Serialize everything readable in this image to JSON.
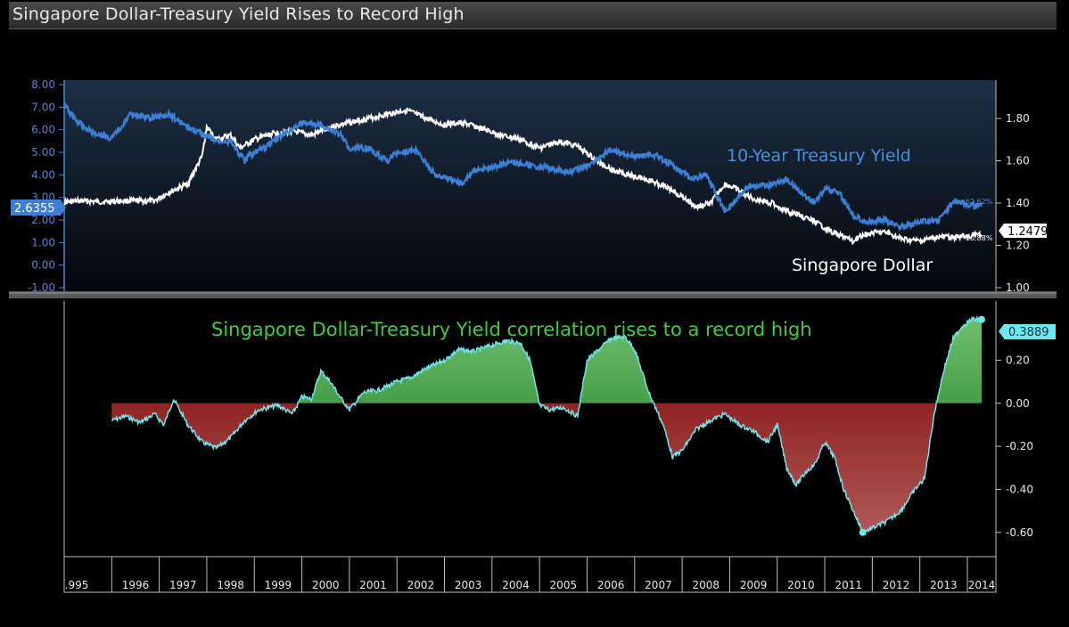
{
  "window_title": "Singapore Dollar-Treasury Yield Rises to Record High",
  "colors": {
    "background": "#000000",
    "treasury": "#3d7fd4",
    "sgd": "#ffffff",
    "correlation_line": "#6ee8ee",
    "positive_fill": "#1f8a1f",
    "negative_fill": "#8c0f0f",
    "annotation_green": "#3bd13b"
  },
  "chart_data": [
    {
      "type": "line",
      "panel": "top",
      "left_axis": {
        "ylim": [
          -1.0,
          8.0
        ],
        "ticks": [
          "8.00",
          "7.00",
          "6.00",
          "5.00",
          "4.00",
          "3.00",
          "2.00",
          "1.00",
          "0.00",
          "-1.00"
        ]
      },
      "right_axis": {
        "ylim": [
          1.0,
          1.96
        ],
        "ticks": [
          "1.80",
          "1.60",
          "1.40",
          "1.20",
          "1.00"
        ]
      },
      "series": [
        {
          "name": "10-Year Treasury Yield",
          "axis": "left",
          "color": "#3d7fd4",
          "x": [
            1995.0,
            1995.3,
            1995.6,
            1996.0,
            1996.4,
            1996.8,
            1997.2,
            1997.6,
            1997.9,
            1998.2,
            1998.5,
            1998.8,
            1998.9,
            1999.2,
            1999.6,
            2000.0,
            2000.4,
            2000.8,
            2001.0,
            2001.4,
            2001.8,
            2002.0,
            2002.4,
            2002.8,
            2003.0,
            2003.4,
            2003.6,
            2004.0,
            2004.4,
            2004.8,
            2005.2,
            2005.6,
            2006.0,
            2006.5,
            2007.0,
            2007.4,
            2007.9,
            2008.2,
            2008.5,
            2008.9,
            2009.0,
            2009.4,
            2009.8,
            2010.2,
            2010.6,
            2010.8,
            2011.0,
            2011.3,
            2011.6,
            2011.9,
            2012.2,
            2012.6,
            2013.0,
            2013.4,
            2013.7,
            2014.0,
            2014.3
          ],
          "values": [
            7.1,
            6.3,
            5.9,
            5.6,
            6.7,
            6.5,
            6.7,
            6.1,
            5.8,
            5.5,
            5.5,
            4.6,
            4.9,
            5.2,
            5.8,
            6.3,
            6.2,
            5.8,
            5.2,
            5.2,
            4.6,
            5.0,
            5.1,
            4.0,
            3.9,
            3.6,
            4.2,
            4.3,
            4.6,
            4.4,
            4.3,
            4.1,
            4.4,
            5.1,
            4.8,
            4.9,
            4.3,
            3.8,
            4.0,
            2.4,
            2.6,
            3.5,
            3.5,
            3.8,
            3.0,
            2.8,
            3.4,
            3.2,
            2.2,
            1.9,
            2.0,
            1.7,
            1.9,
            2.0,
            2.8,
            2.7,
            2.6
          ]
        },
        {
          "name": "Singapore Dollar",
          "axis": "right",
          "color": "#ffffff",
          "x": [
            1995.0,
            1995.4,
            1995.8,
            1996.2,
            1996.6,
            1996.9,
            1997.2,
            1997.6,
            1997.9,
            1998.0,
            1998.2,
            1998.5,
            1998.7,
            1999.0,
            1999.4,
            1999.8,
            2000.2,
            2000.6,
            2001.0,
            2001.4,
            2001.8,
            2002.2,
            2002.6,
            2003.0,
            2003.4,
            2003.8,
            2004.2,
            2004.6,
            2005.0,
            2005.4,
            2005.8,
            2006.2,
            2006.6,
            2007.0,
            2007.4,
            2007.8,
            2008.0,
            2008.3,
            2008.6,
            2008.9,
            2009.1,
            2009.5,
            2009.9,
            2010.2,
            2010.5,
            2010.8,
            2011.1,
            2011.4,
            2011.6,
            2011.8,
            2012.0,
            2012.3,
            2012.6,
            2013.0,
            2013.4,
            2013.8,
            2014.2,
            2014.3
          ],
          "values": [
            1.405,
            1.41,
            1.405,
            1.41,
            1.41,
            1.41,
            1.45,
            1.49,
            1.62,
            1.76,
            1.7,
            1.72,
            1.66,
            1.7,
            1.73,
            1.74,
            1.72,
            1.76,
            1.78,
            1.8,
            1.82,
            1.84,
            1.8,
            1.77,
            1.78,
            1.75,
            1.72,
            1.7,
            1.66,
            1.69,
            1.67,
            1.6,
            1.55,
            1.53,
            1.5,
            1.46,
            1.43,
            1.38,
            1.4,
            1.49,
            1.47,
            1.42,
            1.4,
            1.36,
            1.34,
            1.31,
            1.27,
            1.24,
            1.22,
            1.25,
            1.26,
            1.26,
            1.23,
            1.22,
            1.24,
            1.24,
            1.25,
            1.25
          ]
        }
      ],
      "labels": {
        "treasury": "10-Year Treasury Yield",
        "sgd": "Singapore Dollar",
        "treasury_current": "2.6355",
        "treasury_change": "-62.62%",
        "sgd_current": "1.2479",
        "sgd_change": "-10.88%"
      }
    },
    {
      "type": "area",
      "panel": "bottom",
      "title": "Singapore Dollar-Treasury Yield correlation rises to a record high",
      "ylim": [
        -0.7,
        0.45
      ],
      "y_ticks": [
        "0.20",
        "0.00",
        "-0.20",
        "-0.40",
        "-0.60"
      ],
      "current_value": "0.3889",
      "x": [
        1996.0,
        1996.3,
        1996.6,
        1996.9,
        1997.1,
        1997.3,
        1997.6,
        1997.9,
        1998.2,
        1998.5,
        1998.8,
        1999.1,
        1999.5,
        1999.8,
        2000.0,
        2000.2,
        2000.4,
        2000.6,
        2000.8,
        2001.0,
        2001.3,
        2001.6,
        2002.0,
        2002.3,
        2002.6,
        2003.0,
        2003.3,
        2003.6,
        2004.0,
        2004.3,
        2004.6,
        2004.8,
        2005.0,
        2005.2,
        2005.5,
        2005.8,
        2006.0,
        2006.2,
        2006.5,
        2006.8,
        2007.0,
        2007.3,
        2007.6,
        2007.8,
        2008.0,
        2008.3,
        2008.6,
        2008.9,
        2009.2,
        2009.5,
        2009.8,
        2010.0,
        2010.2,
        2010.4,
        2010.6,
        2010.8,
        2011.0,
        2011.2,
        2011.4,
        2011.6,
        2011.8,
        2012.0,
        2012.3,
        2012.6,
        2012.9,
        2013.1,
        2013.3,
        2013.5,
        2013.7,
        2013.9,
        2014.1,
        2014.3
      ],
      "values": [
        -0.08,
        -0.06,
        -0.09,
        -0.05,
        -0.1,
        0.02,
        -0.1,
        -0.18,
        -0.21,
        -0.16,
        -0.08,
        -0.03,
        -0.01,
        -0.05,
        0.03,
        0.02,
        0.15,
        0.1,
        0.03,
        -0.03,
        0.05,
        0.06,
        0.1,
        0.12,
        0.16,
        0.2,
        0.25,
        0.24,
        0.27,
        0.29,
        0.28,
        0.2,
        -0.01,
        -0.03,
        -0.02,
        -0.06,
        0.2,
        0.24,
        0.3,
        0.31,
        0.25,
        0.05,
        -0.1,
        -0.25,
        -0.22,
        -0.12,
        -0.08,
        -0.05,
        -0.1,
        -0.13,
        -0.18,
        -0.1,
        -0.3,
        -0.38,
        -0.32,
        -0.28,
        -0.18,
        -0.25,
        -0.4,
        -0.5,
        -0.6,
        -0.58,
        -0.55,
        -0.5,
        -0.4,
        -0.35,
        -0.05,
        0.15,
        0.3,
        0.36,
        0.39,
        0.389
      ]
    }
  ],
  "x_axis": {
    "range": [
      1995.0,
      2014.6
    ],
    "labels": [
      ".995",
      "1996",
      "1997",
      "1998",
      "1999",
      "2000",
      "2001",
      "2002",
      "2003",
      "2004",
      "2005",
      "2006",
      "2007",
      "2008",
      "2009",
      "2010",
      "2011",
      "2012",
      "2013",
      "2014"
    ]
  }
}
